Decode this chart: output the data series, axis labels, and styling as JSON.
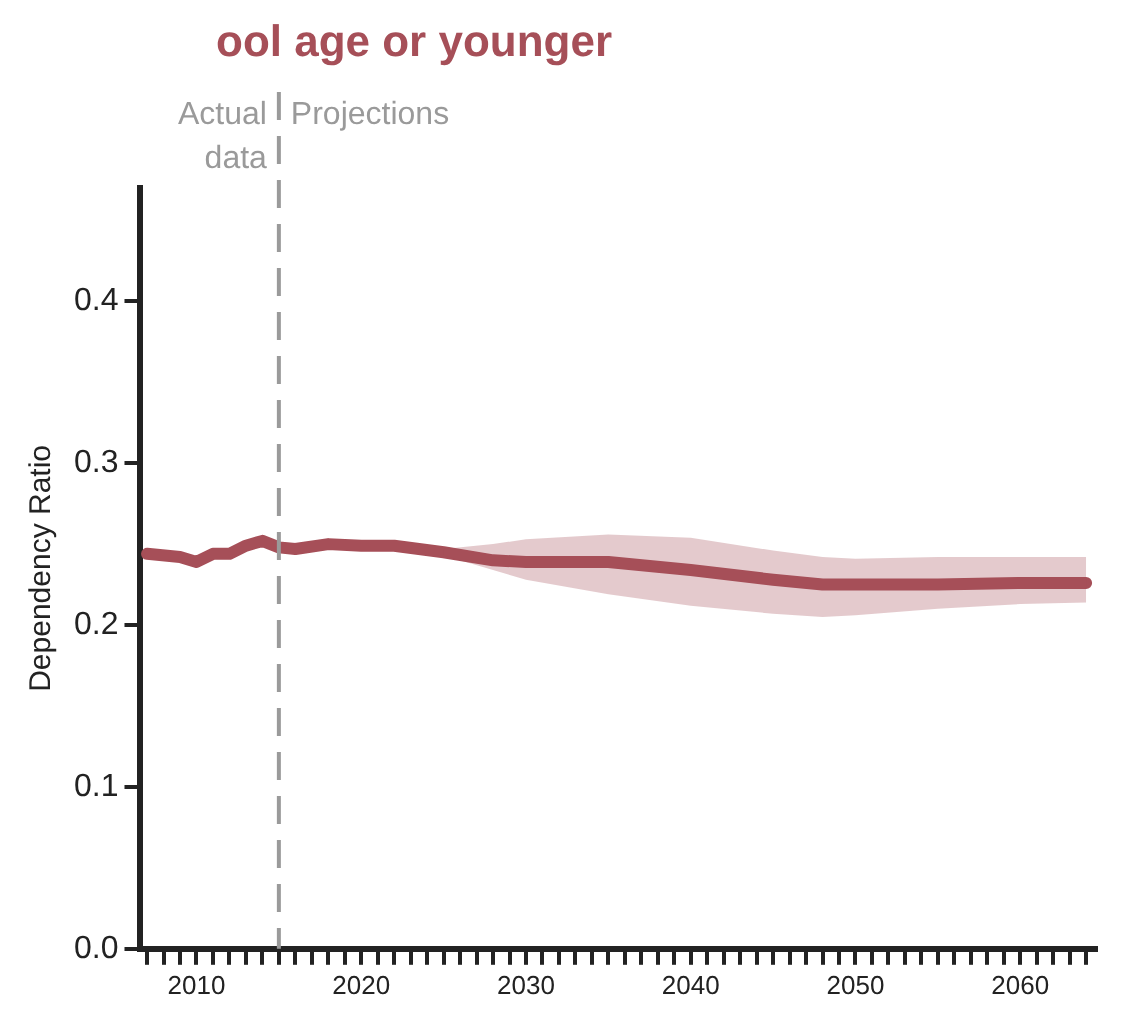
{
  "chart_data": {
    "type": "line",
    "title": "ool age or younger",
    "ylabel": "Dependency Ratio",
    "x": [
      2007,
      2009,
      2010,
      2011,
      2012,
      2013,
      2014,
      2015,
      2016,
      2018,
      2020,
      2022,
      2025,
      2028,
      2030,
      2035,
      2040,
      2045,
      2048,
      2050,
      2055,
      2060,
      2064
    ],
    "series": [
      {
        "color": "#a64f58",
        "values": [
          0.244,
          0.242,
          0.239,
          0.244,
          0.244,
          0.249,
          0.252,
          0.248,
          0.247,
          0.25,
          0.249,
          0.249,
          0.245,
          0.24,
          0.239,
          0.239,
          0.234,
          0.228,
          0.225,
          0.225,
          0.225,
          0.226,
          0.226
        ],
        "lower": [
          null,
          null,
          null,
          null,
          null,
          null,
          null,
          null,
          null,
          null,
          null,
          null,
          0.243,
          0.234,
          0.228,
          0.219,
          0.212,
          0.207,
          0.205,
          0.206,
          0.21,
          0.213,
          0.214
        ],
        "upper": [
          null,
          null,
          null,
          null,
          null,
          null,
          null,
          null,
          null,
          null,
          null,
          null,
          0.247,
          0.25,
          0.253,
          0.256,
          0.254,
          0.246,
          0.242,
          0.241,
          0.242,
          0.242,
          0.242
        ]
      }
    ],
    "xlim": [
      2006.6,
      2064.6
    ],
    "xticks": [
      {
        "value": 2007,
        "label": null
      },
      {
        "value": 2008,
        "label": null
      },
      {
        "value": 2009,
        "label": null
      },
      2010,
      {
        "value": 2011,
        "label": null
      },
      {
        "value": 2012,
        "label": null
      },
      {
        "value": 2013,
        "label": null
      },
      {
        "value": 2014,
        "label": null
      },
      {
        "value": 2015,
        "label": null
      },
      {
        "value": 2016,
        "label": null
      },
      {
        "value": 2017,
        "label": null
      },
      {
        "value": 2018,
        "label": null
      },
      {
        "value": 2019,
        "label": null
      },
      2020,
      {
        "value": 2021,
        "label": null
      },
      {
        "value": 2022,
        "label": null
      },
      {
        "value": 2023,
        "label": null
      },
      {
        "value": 2024,
        "label": null
      },
      {
        "value": 2025,
        "label": null
      },
      {
        "value": 2026,
        "label": null
      },
      {
        "value": 2027,
        "label": null
      },
      {
        "value": 2028,
        "label": null
      },
      {
        "value": 2029,
        "label": null
      },
      2030,
      {
        "value": 2031,
        "label": null
      },
      {
        "value": 2032,
        "label": null
      },
      {
        "value": 2033,
        "label": null
      },
      {
        "value": 2034,
        "label": null
      },
      {
        "value": 2035,
        "label": null
      },
      {
        "value": 2036,
        "label": null
      },
      {
        "value": 2037,
        "label": null
      },
      {
        "value": 2038,
        "label": null
      },
      {
        "value": 2039,
        "label": null
      },
      2040,
      {
        "value": 2041,
        "label": null
      },
      {
        "value": 2042,
        "label": null
      },
      {
        "value": 2043,
        "label": null
      },
      {
        "value": 2044,
        "label": null
      },
      {
        "value": 2045,
        "label": null
      },
      {
        "value": 2046,
        "label": null
      },
      {
        "value": 2047,
        "label": null
      },
      {
        "value": 2048,
        "label": null
      },
      {
        "value": 2049,
        "label": null
      },
      2050,
      {
        "value": 2051,
        "label": null
      },
      {
        "value": 2052,
        "label": null
      },
      {
        "value": 2053,
        "label": null
      },
      {
        "value": 2054,
        "label": null
      },
      {
        "value": 2055,
        "label": null
      },
      {
        "value": 2056,
        "label": null
      },
      {
        "value": 2057,
        "label": null
      },
      {
        "value": 2058,
        "label": null
      },
      {
        "value": 2059,
        "label": null
      },
      2060,
      {
        "value": 2061,
        "label": null
      },
      {
        "value": 2062,
        "label": null
      },
      {
        "value": 2063,
        "label": null
      },
      {
        "value": 2064,
        "label": null
      }
    ],
    "ylim": [
      0,
      0.47
    ],
    "yticks": [
      {
        "value": 0,
        "label": "0.0"
      },
      {
        "value": 0.1,
        "label": "0.1"
      },
      {
        "value": 0.2,
        "label": "0.2"
      },
      {
        "value": 0.3,
        "label": "0.3"
      },
      {
        "value": 0.4,
        "label": "0.4"
      }
    ],
    "ref_lines": [
      {
        "axis": "x",
        "value": 2015,
        "color": "#9a9a9a",
        "line_style": "dashed"
      }
    ],
    "annotations": [
      "Actual data",
      "Projections"
    ],
    "grid": false,
    "legend": false,
    "marker": "none",
    "line_style": "solid"
  }
}
